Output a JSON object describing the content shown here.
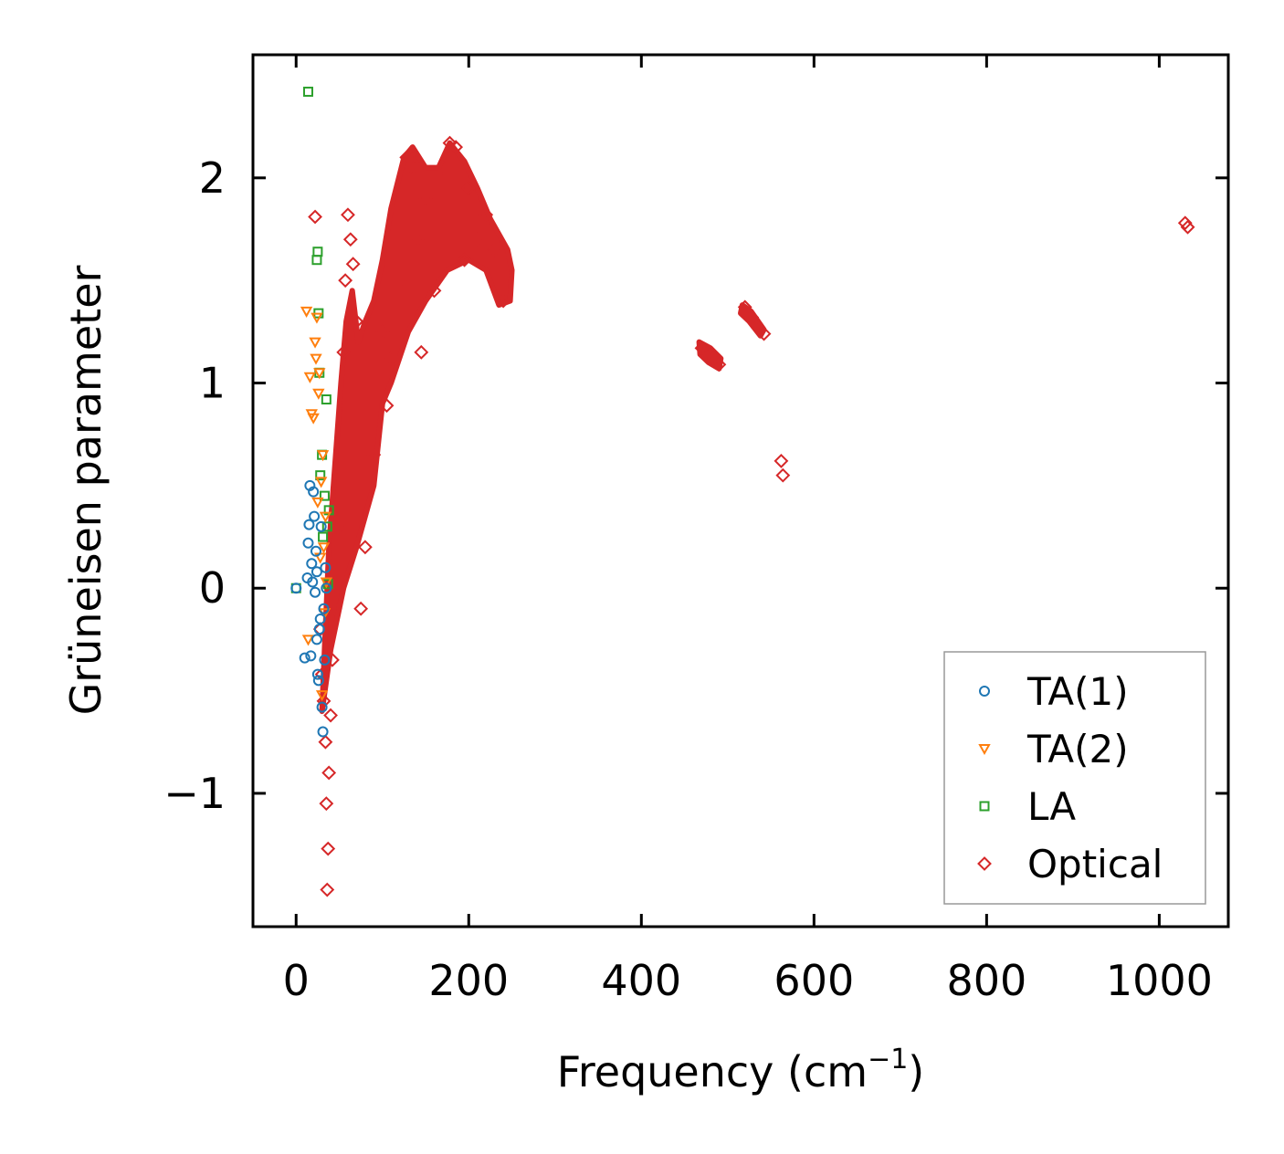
{
  "chart_data": {
    "type": "scatter",
    "title": "",
    "xlabel": "Frequency (cm",
    "xlabel_sup": "−1",
    "xlabel_close": ")",
    "ylabel": "Grüneisen parameter",
    "xlim": [
      -50,
      1080
    ],
    "ylim": [
      -1.65,
      2.6
    ],
    "xticks": [
      0,
      200,
      400,
      600,
      800,
      1000
    ],
    "yticks": [
      -1,
      0,
      1,
      2
    ],
    "xtick_labels": [
      "0",
      "200",
      "400",
      "600",
      "800",
      "1000"
    ],
    "ytick_labels": [
      "−1",
      "0",
      "1",
      "2"
    ],
    "legend_position": "lower-right",
    "series": [
      {
        "name": "TA(1)",
        "marker": "circle",
        "color": "#1f77b4",
        "points": [
          [
            0,
            0
          ],
          [
            10,
            -0.34
          ],
          [
            13,
            0.05
          ],
          [
            14,
            0.22
          ],
          [
            15,
            0.31
          ],
          [
            16,
            0.5
          ],
          [
            17,
            -0.33
          ],
          [
            18,
            0.12
          ],
          [
            19,
            0.03
          ],
          [
            20,
            0.47
          ],
          [
            21,
            0.35
          ],
          [
            22,
            -0.02
          ],
          [
            23,
            0.18
          ],
          [
            24,
            -0.25
          ],
          [
            24,
            0.08
          ],
          [
            25,
            -0.42
          ],
          [
            26,
            -0.45
          ],
          [
            27,
            -0.2
          ],
          [
            28,
            -0.15
          ],
          [
            29,
            0.3
          ],
          [
            30,
            -0.58
          ],
          [
            31,
            -0.7
          ],
          [
            32,
            -0.1
          ],
          [
            33,
            -0.35
          ],
          [
            34,
            0.1
          ],
          [
            35,
            0.0
          ]
        ]
      },
      {
        "name": "TA(2)",
        "marker": "triangle-down",
        "color": "#ff7f0e",
        "points": [
          [
            12,
            1.35
          ],
          [
            14,
            -0.25
          ],
          [
            16,
            1.03
          ],
          [
            18,
            0.85
          ],
          [
            20,
            0.83
          ],
          [
            22,
            1.2
          ],
          [
            23,
            1.12
          ],
          [
            24,
            1.32
          ],
          [
            25,
            0.42
          ],
          [
            26,
            0.95
          ],
          [
            27,
            1.05
          ],
          [
            28,
            0.15
          ],
          [
            29,
            0.52
          ],
          [
            30,
            -0.52
          ],
          [
            31,
            0.65
          ],
          [
            32,
            0.2
          ],
          [
            33,
            -0.12
          ],
          [
            34,
            0.35
          ],
          [
            35,
            0.03
          ]
        ]
      },
      {
        "name": "LA",
        "marker": "square",
        "color": "#2ca02c",
        "points": [
          [
            0,
            0
          ],
          [
            14,
            2.42
          ],
          [
            24,
            1.6
          ],
          [
            25,
            1.64
          ],
          [
            26,
            1.34
          ],
          [
            27,
            1.05
          ],
          [
            28,
            0.55
          ],
          [
            30,
            0.65
          ],
          [
            31,
            0.25
          ],
          [
            33,
            0.45
          ],
          [
            35,
            0.92
          ],
          [
            36,
            0.3
          ],
          [
            37,
            0.02
          ],
          [
            38,
            0.38
          ]
        ]
      },
      {
        "name": "Optical",
        "marker": "diamond",
        "color": "#d62728",
        "points": [
          [
            22,
            1.81
          ],
          [
            28,
            -0.2
          ],
          [
            30,
            -0.42
          ],
          [
            32,
            -0.55
          ],
          [
            34,
            -0.75
          ],
          [
            35,
            -1.05
          ],
          [
            36,
            -1.47
          ],
          [
            37,
            -1.27
          ],
          [
            38,
            -0.9
          ],
          [
            40,
            -0.62
          ],
          [
            42,
            -0.35
          ],
          [
            45,
            -0.1
          ],
          [
            50,
            0.3
          ],
          [
            55,
            1.15
          ],
          [
            57,
            1.5
          ],
          [
            60,
            1.82
          ],
          [
            63,
            1.7
          ],
          [
            66,
            1.58
          ],
          [
            70,
            1.3
          ],
          [
            75,
            -0.1
          ],
          [
            80,
            0.2
          ],
          [
            90,
            0.65
          ],
          [
            100,
            1.25
          ],
          [
            105,
            0.89
          ],
          [
            110,
            1.12
          ],
          [
            120,
            1.5
          ],
          [
            128,
            2.1
          ],
          [
            135,
            2.05
          ],
          [
            140,
            1.7
          ],
          [
            145,
            1.15
          ],
          [
            150,
            1.9
          ],
          [
            160,
            1.45
          ],
          [
            170,
            2.05
          ],
          [
            178,
            2.17
          ],
          [
            185,
            2.15
          ],
          [
            195,
            1.6
          ],
          [
            200,
            1.95
          ],
          [
            210,
            1.7
          ],
          [
            220,
            1.82
          ],
          [
            230,
            1.65
          ],
          [
            240,
            1.4
          ],
          [
            470,
            1.17
          ],
          [
            478,
            1.15
          ],
          [
            484,
            1.12
          ],
          [
            490,
            1.09
          ],
          [
            520,
            1.37
          ],
          [
            528,
            1.32
          ],
          [
            535,
            1.27
          ],
          [
            542,
            1.24
          ],
          [
            562,
            0.62
          ],
          [
            564,
            0.55
          ],
          [
            1030,
            1.78
          ],
          [
            1033,
            1.76
          ]
        ]
      }
    ],
    "dense_regions": [
      {
        "series": "Optical",
        "color": "#d62728",
        "outline": [
          [
            30,
            -0.6
          ],
          [
            40,
            -0.3
          ],
          [
            55,
            0.0
          ],
          [
            70,
            0.2
          ],
          [
            90,
            0.5
          ],
          [
            100,
            0.9
          ],
          [
            110,
            1.0
          ],
          [
            130,
            1.25
          ],
          [
            150,
            1.4
          ],
          [
            175,
            1.55
          ],
          [
            200,
            1.6
          ],
          [
            220,
            1.55
          ],
          [
            235,
            1.38
          ],
          [
            248,
            1.4
          ],
          [
            250,
            1.55
          ],
          [
            245,
            1.65
          ],
          [
            225,
            1.8
          ],
          [
            210,
            1.95
          ],
          [
            195,
            2.08
          ],
          [
            178,
            2.17
          ],
          [
            165,
            2.05
          ],
          [
            150,
            2.05
          ],
          [
            135,
            2.15
          ],
          [
            125,
            2.1
          ],
          [
            110,
            1.85
          ],
          [
            100,
            1.6
          ],
          [
            90,
            1.4
          ],
          [
            80,
            1.3
          ],
          [
            72,
            1.2
          ],
          [
            65,
            1.45
          ],
          [
            58,
            1.3
          ],
          [
            52,
            1.0
          ],
          [
            45,
            0.6
          ],
          [
            38,
            0.2
          ],
          [
            33,
            -0.3
          ]
        ]
      },
      {
        "series": "Optical",
        "color": "#d62728",
        "outline": [
          [
            467,
            1.2
          ],
          [
            480,
            1.17
          ],
          [
            492,
            1.12
          ],
          [
            490,
            1.07
          ],
          [
            478,
            1.1
          ],
          [
            468,
            1.14
          ]
        ]
      },
      {
        "series": "Optical",
        "color": "#d62728",
        "outline": [
          [
            517,
            1.38
          ],
          [
            527,
            1.35
          ],
          [
            542,
            1.26
          ],
          [
            538,
            1.23
          ],
          [
            525,
            1.3
          ],
          [
            515,
            1.34
          ]
        ]
      }
    ]
  }
}
